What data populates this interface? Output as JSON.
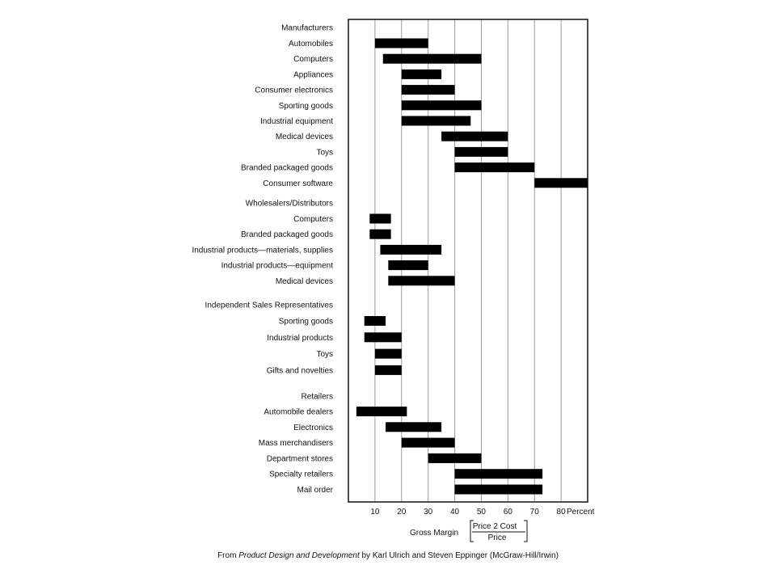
{
  "chart_data": {
    "type": "bar",
    "orientation": "horizontal-range",
    "xlim": [
      0,
      90
    ],
    "xticks": [
      "10",
      "20",
      "30",
      "40",
      "50",
      "60",
      "70",
      "80"
    ],
    "x_unit_label": "Percent",
    "grid": true,
    "xlabel": "Gross Margin",
    "formula_numerator": "Price 2 Cost",
    "formula_denominator": "Price",
    "groups": [
      {
        "name": "Manufacturers",
        "items": [
          {
            "label": "Automobiles",
            "range": [
              10,
              30
            ]
          },
          {
            "label": "Computers",
            "range": [
              13,
              50
            ]
          },
          {
            "label": "Appliances",
            "range": [
              20,
              35
            ]
          },
          {
            "label": "Consumer electronics",
            "range": [
              20,
              40
            ]
          },
          {
            "label": "Sporting goods",
            "range": [
              20,
              50
            ]
          },
          {
            "label": "Industrial equipment",
            "range": [
              20,
              46
            ]
          },
          {
            "label": "Medical devices",
            "range": [
              35,
              60
            ]
          },
          {
            "label": "Toys",
            "range": [
              40,
              60
            ]
          },
          {
            "label": "Branded packaged goods",
            "range": [
              40,
              70
            ]
          },
          {
            "label": "Consumer software",
            "range": [
              70,
              90
            ]
          }
        ]
      },
      {
        "name": "Wholesalers/Distributors",
        "items": [
          {
            "label": "Computers",
            "range": [
              8,
              16
            ]
          },
          {
            "label": "Branded packaged goods",
            "range": [
              8,
              16
            ]
          },
          {
            "label": "Industrial products—materials, supplies",
            "range": [
              12,
              35
            ]
          },
          {
            "label": "Industrial products—equipment",
            "range": [
              15,
              30
            ]
          },
          {
            "label": "Medical devices",
            "range": [
              15,
              40
            ]
          }
        ]
      },
      {
        "name": "Independent Sales Representatives",
        "items": [
          {
            "label": "Sporting goods",
            "range": [
              6,
              14
            ]
          },
          {
            "label": "Industrial products",
            "range": [
              6,
              20
            ]
          },
          {
            "label": "Toys",
            "range": [
              10,
              20
            ]
          },
          {
            "label": "Gifts and novelties",
            "range": [
              10,
              20
            ]
          }
        ]
      },
      {
        "name": "Retailers",
        "items": [
          {
            "label": "Automobile dealers",
            "range": [
              3,
              22
            ]
          },
          {
            "label": "Electronics",
            "range": [
              14,
              35
            ]
          },
          {
            "label": "Mass merchandisers",
            "range": [
              20,
              40
            ]
          },
          {
            "label": "Department stores",
            "range": [
              30,
              50
            ]
          },
          {
            "label": "Specialty retailers",
            "range": [
              40,
              73
            ]
          },
          {
            "label": "Mail order",
            "range": [
              40,
              73
            ]
          }
        ]
      }
    ]
  },
  "caption": {
    "prefix": "From ",
    "book_title": "Product Design and Development",
    "suffix": " by Karl Ulrich and Steven Eppinger (McGraw-Hill/Irwin)"
  }
}
